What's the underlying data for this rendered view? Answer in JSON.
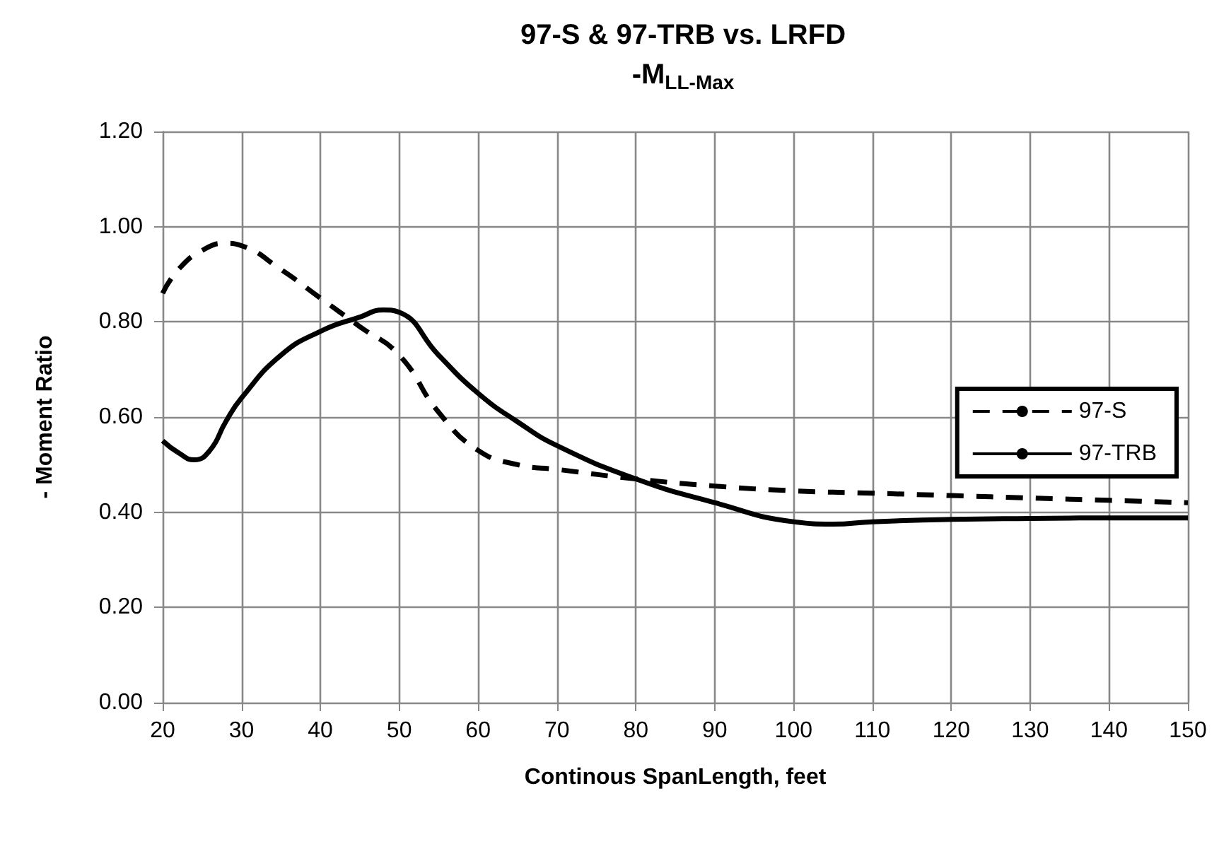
{
  "chart_data": {
    "type": "line",
    "title": "97-S & 97-TRB vs. LRFD",
    "subtitle": "-M$_{LL-Max}$",
    "xlabel": "Continous SpanLength, feet",
    "ylabel": "- Moment Ratio",
    "xlim": [
      20,
      150
    ],
    "xticks": [
      20,
      30,
      40,
      50,
      60,
      70,
      80,
      90,
      100,
      110,
      120,
      130,
      140,
      150
    ],
    "ylim": [
      0,
      1.2
    ],
    "yticks": [
      {
        "value": 0,
        "label": "0.00"
      },
      {
        "value": 0.2,
        "label": "0.20"
      },
      {
        "value": 0.4,
        "label": "0.40"
      },
      {
        "value": 0.6,
        "label": "0.60"
      },
      {
        "value": 0.8,
        "label": "0.80"
      },
      {
        "value": 1,
        "label": "1.00"
      },
      {
        "value": 1.2,
        "label": "1.20"
      }
    ],
    "grid": true,
    "legend": "right",
    "marker": "none",
    "series": [
      {
        "name": "97-S",
        "color": "#000000",
        "line_style": "dashed",
        "x": [
          20,
          22,
          25,
          28,
          30,
          35,
          40,
          45,
          50,
          55,
          60,
          65,
          70,
          80,
          90,
          100,
          110,
          120,
          130,
          140,
          150
        ],
        "values": [
          0.86,
          0.91,
          0.95,
          0.965,
          0.96,
          0.91,
          0.85,
          0.79,
          0.73,
          0.61,
          0.53,
          0.5,
          0.49,
          0.47,
          0.455,
          0.445,
          0.44,
          0.435,
          0.43,
          0.425,
          0.42
        ]
      },
      {
        "name": "97-TRB",
        "color": "#000000",
        "line_style": "solid",
        "x": [
          20,
          22,
          24,
          26,
          28,
          30,
          35,
          40,
          45,
          48,
          50,
          55,
          60,
          65,
          70,
          80,
          90,
          100,
          105,
          110,
          120,
          130,
          140,
          150
        ],
        "values": [
          0.55,
          0.525,
          0.51,
          0.53,
          0.59,
          0.64,
          0.73,
          0.78,
          0.81,
          0.825,
          0.82,
          0.73,
          0.65,
          0.59,
          0.54,
          0.47,
          0.42,
          0.38,
          0.375,
          0.38,
          0.385,
          0.387,
          0.388,
          0.388
        ]
      }
    ]
  }
}
